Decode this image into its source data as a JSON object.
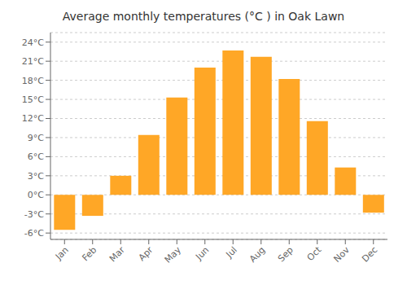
{
  "chart_data": {
    "type": "bar",
    "title": "Average monthly temperatures (°C ) in Oak Lawn",
    "categories": [
      "Jan",
      "Feb",
      "Mar",
      "Apr",
      "May",
      "Jun",
      "Jul",
      "Aug",
      "Sep",
      "Oct",
      "Nov",
      "Dec"
    ],
    "values": [
      -5.5,
      -3.3,
      3.0,
      9.4,
      15.3,
      20.0,
      22.7,
      21.7,
      18.2,
      11.6,
      4.3,
      -2.8
    ],
    "color": "#FFA726",
    "ylim": [
      -7,
      25.5
    ],
    "yticks": [
      {
        "value": -6,
        "label": "-6°C"
      },
      {
        "value": -3,
        "label": "-3°C"
      },
      {
        "value": 0,
        "label": "0°C"
      },
      {
        "value": 3,
        "label": "3°C"
      },
      {
        "value": 6,
        "label": "6°C"
      },
      {
        "value": 9,
        "label": "9°C"
      },
      {
        "value": 12,
        "label": "12°C"
      },
      {
        "value": 15,
        "label": "15°C"
      },
      {
        "value": 18,
        "label": "18°C"
      },
      {
        "value": 21,
        "label": "21°C"
      },
      {
        "value": 24,
        "label": "24°C"
      }
    ],
    "grid": true
  }
}
